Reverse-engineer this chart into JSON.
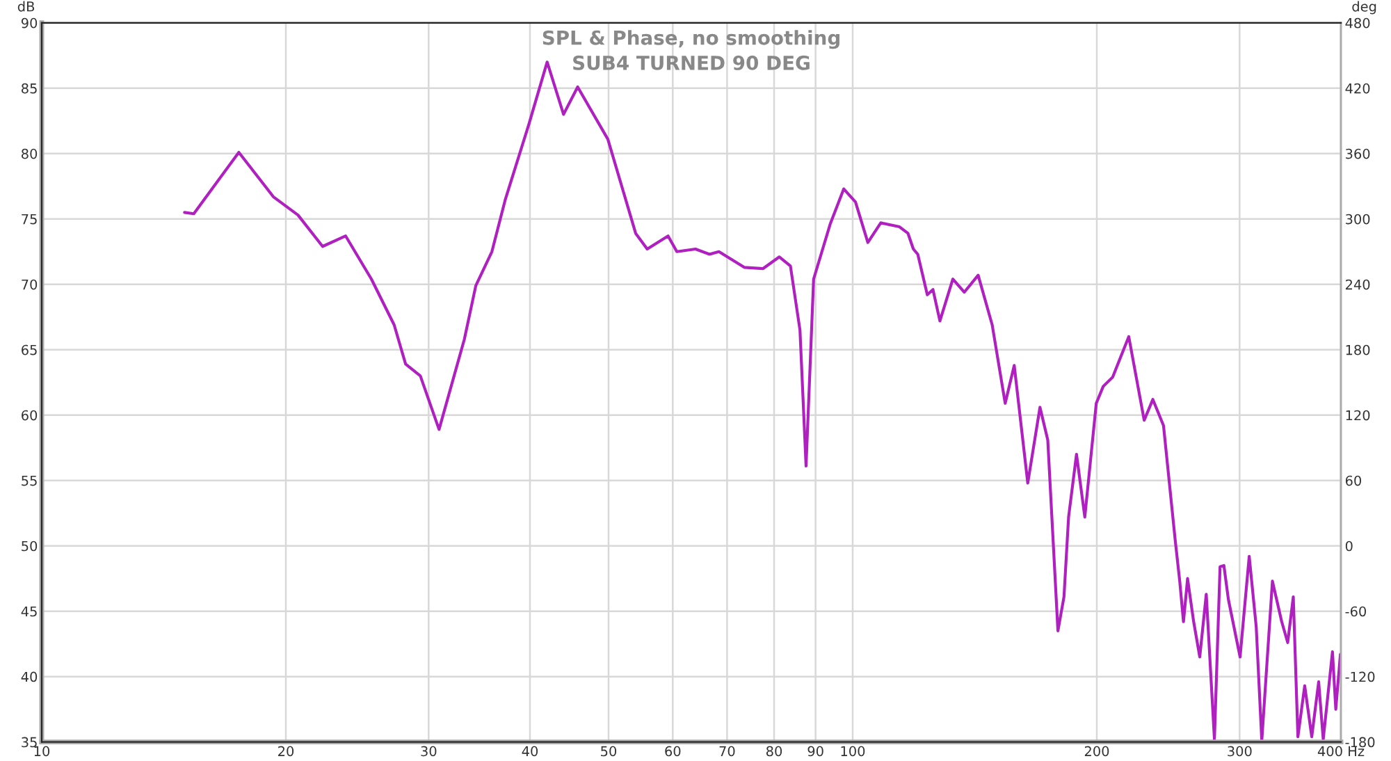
{
  "chart_data": {
    "type": "line",
    "title": "SPL & Phase, no smoothing",
    "subtitle": "SUB4 TURNED 90 DEG",
    "ylabel": "dB",
    "y2label": "deg",
    "log": "x",
    "grid": true,
    "marker": "none",
    "line_style": "solid",
    "xlim": [
      10,
      400
    ],
    "xticks": [
      10,
      20,
      30,
      40,
      50,
      60,
      70,
      80,
      90,
      100,
      200,
      300,
      {
        "value": 400,
        "label": "400 Hz"
      }
    ],
    "ylim": [
      35,
      90
    ],
    "yticks": [
      35,
      40,
      45,
      50,
      55,
      60,
      65,
      70,
      75,
      80,
      85,
      90
    ],
    "y2lim": [
      -180,
      480
    ],
    "y2ticks": [
      -180,
      -120,
      -60,
      0,
      60,
      120,
      180,
      240,
      300,
      360,
      420,
      480
    ],
    "series": [
      {
        "color": "#b020c0",
        "x": [
          15.0,
          15.4,
          17.5,
          19.3,
          20.7,
          22.2,
          23.7,
          25.5,
          27.2,
          28.1,
          29.3,
          30.9,
          33.2,
          34.3,
          35.9,
          37.3,
          39.9,
          42.0,
          44.0,
          45.8,
          49.9,
          54.0,
          55.8,
          59.2,
          60.7,
          64.0,
          66.6,
          68.4,
          73.5,
          77.5,
          81.2,
          83.8,
          86.1,
          87.6,
          89.5,
          93.8,
          97.5,
          100.8,
          104.4,
          108.3,
          114.2,
          117.0,
          118.8,
          120.3,
          123.6,
          125.6,
          128.1,
          132.9,
          137.3,
          142.8,
          148.6,
          154.2,
          158.2,
          164.4,
          170.2,
          174.0,
          179.1,
          182.2,
          184.6,
          188.8,
          193.3,
          199.7,
          203.7,
          209.2,
          219.0,
          228.8,
          234.5,
          241.7,
          249.8,
          253.1,
          255.8,
          258.8,
          263.3,
          267.9,
          272.9,
          279.3,
          283.8,
          286.9,
          290.6,
          300.4,
          308.3,
          314.5,
          319.5,
          329.3,
          338.1,
          343.9,
          349.4,
          354.0,
          360.9,
          368.2,
          375.5,
          380.4,
          390.5,
          394.2,
          399.4
        ],
        "values": [
          75.5,
          75.4,
          80.1,
          76.7,
          75.3,
          72.9,
          73.7,
          70.4,
          66.9,
          63.9,
          63.0,
          58.9,
          65.8,
          69.9,
          72.5,
          76.5,
          82.3,
          87.0,
          83.0,
          85.1,
          81.1,
          73.9,
          72.7,
          73.7,
          72.5,
          72.7,
          72.3,
          72.5,
          71.3,
          71.2,
          72.1,
          71.4,
          66.5,
          56.1,
          70.4,
          74.6,
          77.3,
          76.3,
          73.2,
          74.7,
          74.4,
          73.9,
          72.7,
          72.3,
          69.2,
          69.6,
          67.2,
          70.4,
          69.4,
          70.7,
          66.9,
          60.9,
          63.8,
          54.8,
          60.6,
          58.1,
          43.5,
          46.1,
          52.2,
          57.0,
          52.2,
          60.9,
          62.2,
          62.9,
          66.0,
          59.6,
          61.2,
          59.2,
          50.5,
          47.3,
          44.2,
          47.5,
          44.2,
          41.5,
          46.3,
          35.2,
          48.4,
          48.5,
          45.9,
          41.5,
          49.2,
          43.8,
          35.1,
          47.3,
          44.2,
          42.6,
          46.1,
          35.4,
          39.3,
          35.4,
          39.6,
          35.2,
          41.9,
          37.5,
          41.7
        ]
      }
    ]
  }
}
